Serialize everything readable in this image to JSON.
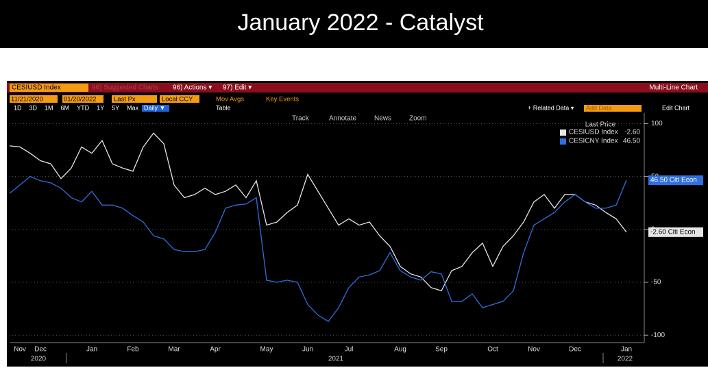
{
  "slide_title": "January 2022 - Catalyst",
  "toolbar": {
    "ticker": "CESIUSD Index",
    "suggested": "96) Suggested Charts",
    "actions": "96) Actions ▾",
    "edit": "97) Edit ▾",
    "chart_kind": "Multi-Line Chart",
    "date_from": "11/21/2020",
    "date_to": "01/20/2022",
    "price_field": "Last Px",
    "currency": "Local CCY",
    "mov_avgs": "Mov Avgs",
    "key_events": "Key Events",
    "periods": [
      "1D",
      "3D",
      "1M",
      "6M",
      "YTD",
      "1Y",
      "5Y",
      "Max"
    ],
    "frequency": "Daily ▼",
    "table": "Table",
    "related_data": "+ Related Data ▾",
    "add_data": "Add Data",
    "edit_chart": "Edit Chart",
    "tools": [
      "Track",
      "Annotate",
      "News",
      "Zoom"
    ]
  },
  "chart_data": {
    "type": "line",
    "legend_title": "Last Price",
    "categories": [
      null,
      "Nov",
      null,
      "Dec",
      null,
      null,
      null,
      null,
      "Jan",
      null,
      null,
      null,
      "Feb",
      null,
      null,
      null,
      "Mar",
      null,
      null,
      null,
      "Apr",
      null,
      null,
      null,
      null,
      "May",
      null,
      null,
      null,
      "Jun",
      null,
      null,
      null,
      "Jul",
      null,
      null,
      null,
      null,
      "Aug",
      null,
      null,
      null,
      "Sep",
      null,
      null,
      null,
      null,
      "Oct",
      null,
      null,
      null,
      "Nov",
      null,
      null,
      null,
      "Dec",
      null,
      null,
      null,
      null,
      "Jan"
    ],
    "years": [
      "2020",
      "2021",
      "2022"
    ],
    "series": [
      {
        "name": "CESIUSD Index",
        "color": "#e6e6e6",
        "last_label": "-2.60",
        "tag": "-2.60 Citi Econ",
        "values": [
          79,
          78,
          72,
          65,
          62,
          48,
          58,
          78,
          72,
          84,
          62,
          58,
          55,
          78,
          91,
          81,
          42,
          30,
          33,
          39,
          33,
          36,
          42,
          30,
          46,
          4,
          7,
          16,
          23,
          52,
          36,
          20,
          4,
          10,
          4,
          7,
          -6,
          -16,
          -35,
          -42,
          -45,
          -55,
          -58,
          -39,
          -35,
          -22,
          -13,
          -35,
          -16,
          -6,
          7,
          26,
          33,
          20,
          33,
          33,
          26,
          23,
          16,
          10,
          -2.6
        ]
      },
      {
        "name": "CESICNY Index",
        "color": "#2f6fe0",
        "last_label": "46.50",
        "tag": "46.50 Citi Econ",
        "values": [
          34,
          42,
          50,
          46,
          44,
          39,
          30,
          26,
          36,
          23,
          23,
          20,
          13,
          7,
          -6,
          -9,
          -19,
          -21,
          -21,
          -19,
          -3,
          20,
          23,
          24,
          30,
          -48,
          -50,
          -48,
          -50,
          -71,
          -81,
          -87,
          -74,
          -55,
          -45,
          -43,
          -39,
          -22,
          -39,
          -45,
          -48,
          -40,
          -42,
          -68,
          -68,
          -61,
          -74,
          -71,
          -68,
          -58,
          -22,
          4,
          10,
          16,
          26,
          33,
          26,
          20,
          20,
          23,
          46.5
        ]
      }
    ],
    "ylim": [
      -107,
      110
    ],
    "yticks": [
      100,
      50,
      0,
      -50,
      -100
    ],
    "grid": true,
    "legend": "upper-right"
  }
}
